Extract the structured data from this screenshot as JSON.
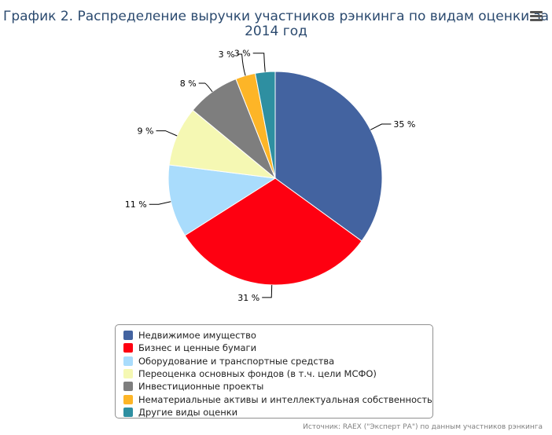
{
  "chart": {
    "title_lines": [
      "График 2. Распределение выручки участников рэнкинга по видам оценки за",
      "2014 год"
    ],
    "menu_icon": "hamburger-menu-icon",
    "credits": "Источник: RAEX (\"Эксперт РА\") по данным участников рэнкинга"
  },
  "chart_data": {
    "type": "pie",
    "title": "График 2. Распределение выручки участников рэнкинга по видам оценки за 2014 год",
    "legend_position": "bottom",
    "slices": [
      {
        "name": "Недвижимое имущество",
        "value": 35,
        "label": "35 %",
        "color": "#4363a0"
      },
      {
        "name": "Бизнес и ценные бумаги",
        "value": 31,
        "label": "31 %",
        "color": "#fe0011"
      },
      {
        "name": "Оборудование и транспортные средства",
        "value": 11,
        "label": "11 %",
        "color": "#a9dcfc"
      },
      {
        "name": "Переоценка основных фондов (в т.ч. цели МСФО)",
        "value": 9,
        "label": "9 %",
        "color": "#f5f8b3"
      },
      {
        "name": "Инвестиционные проекты",
        "value": 8,
        "label": "8 %",
        "color": "#7e7e7e"
      },
      {
        "name": "Нематериальные активы и интеллектуальная собственность",
        "value": 3,
        "label": "3 %",
        "color": "#fdb527"
      },
      {
        "name": "Другие виды оценки",
        "value": 3,
        "label": "3 %",
        "color": "#2e8fa1"
      }
    ]
  }
}
